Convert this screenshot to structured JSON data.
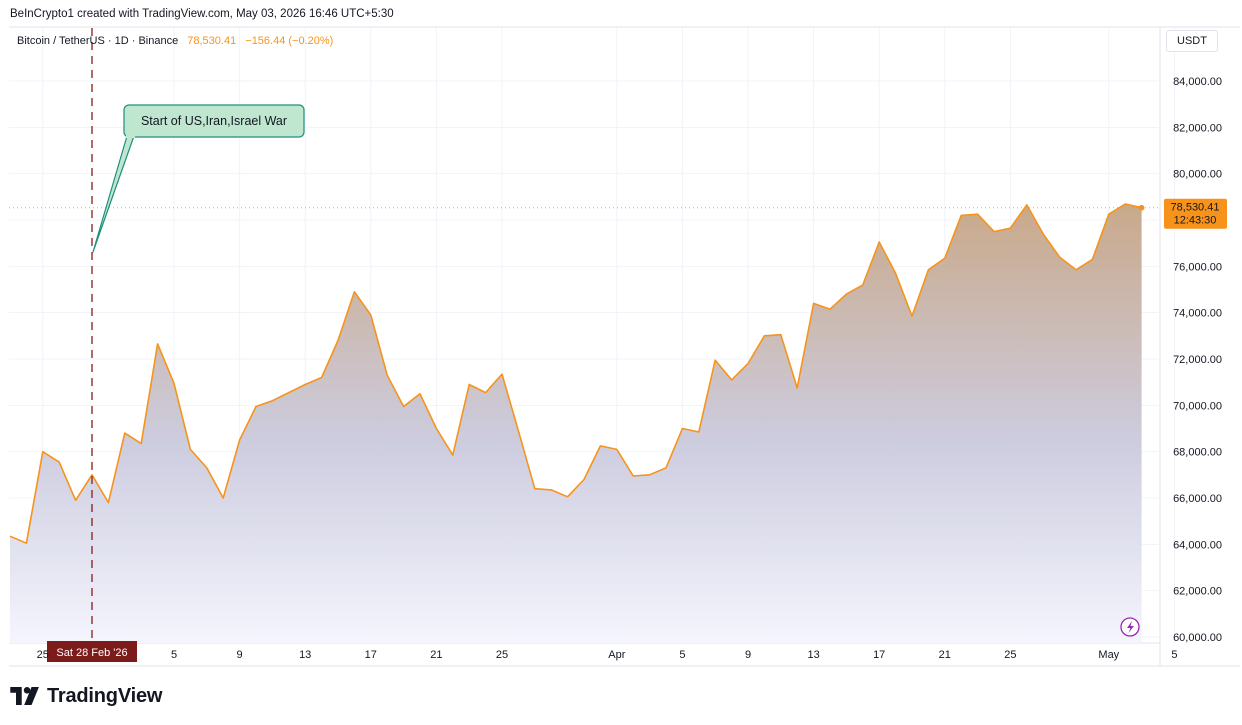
{
  "header": {
    "attribution": "BeInCrypto1 created with TradingView.com, May 03, 2026 16:46 UTC+5:30"
  },
  "legend": {
    "symbol": "Bitcoin / TetherUS · 1D · Binance",
    "price": "78,530.41",
    "change": "−156.44 (−0.20%)"
  },
  "currency": "USDT",
  "last_price_label": {
    "price": "78,530.41",
    "countdown": "12:43:30"
  },
  "annotation": {
    "text": "Start of US,Iran,Israel War"
  },
  "crosshair_date_label": "Sat 28 Feb '26",
  "logo": {
    "text": "TradingView"
  },
  "colors": {
    "line": "#f7931a",
    "area_top": "#c9a98a",
    "area_bottom": "#eef0fb",
    "annotation_fill": "#bfe6cf",
    "annotation_border": "#1e8f7c",
    "crosshair": "#8b1a1a",
    "date_label_bg": "#7d1b1b",
    "price_label_bg": "#f7931a",
    "flash_icon": "#9c27b0"
  },
  "icons": {
    "flash": "flash-icon",
    "logo": "tradingview-logo-icon"
  },
  "chart_data": {
    "type": "area",
    "x_tick_labels": [
      "25",
      "5",
      "9",
      "13",
      "17",
      "21",
      "25",
      "Apr",
      "5",
      "9",
      "13",
      "17",
      "21",
      "25",
      "May",
      "5"
    ],
    "y_tick_labels": [
      "60,000.00",
      "62,000.00",
      "64,000.00",
      "66,000.00",
      "68,000.00",
      "70,000.00",
      "72,000.00",
      "74,000.00",
      "76,000.00",
      "78,000.00",
      "80,000.00",
      "82,000.00",
      "84,000.00"
    ],
    "ylim": [
      59800,
      86000
    ],
    "x_start": "2026-02-23",
    "x": [
      "2026-02-23",
      "2026-02-24",
      "2026-02-25",
      "2026-02-26",
      "2026-02-27",
      "2026-02-28",
      "2026-03-01",
      "2026-03-02",
      "2026-03-03",
      "2026-03-04",
      "2026-03-05",
      "2026-03-06",
      "2026-03-07",
      "2026-03-08",
      "2026-03-09",
      "2026-03-10",
      "2026-03-11",
      "2026-03-12",
      "2026-03-13",
      "2026-03-14",
      "2026-03-15",
      "2026-03-16",
      "2026-03-17",
      "2026-03-18",
      "2026-03-19",
      "2026-03-20",
      "2026-03-21",
      "2026-03-22",
      "2026-03-23",
      "2026-03-24",
      "2026-03-25",
      "2026-03-26",
      "2026-03-27",
      "2026-03-28",
      "2026-03-29",
      "2026-03-30",
      "2026-03-31",
      "2026-04-01",
      "2026-04-02",
      "2026-04-03",
      "2026-04-04",
      "2026-04-05",
      "2026-04-06",
      "2026-04-07",
      "2026-04-08",
      "2026-04-09",
      "2026-04-10",
      "2026-04-11",
      "2026-04-12",
      "2026-04-13",
      "2026-04-14",
      "2026-04-15",
      "2026-04-16",
      "2026-04-17",
      "2026-04-18",
      "2026-04-19",
      "2026-04-20",
      "2026-04-21",
      "2026-04-22",
      "2026-04-23",
      "2026-04-24",
      "2026-04-25",
      "2026-04-26",
      "2026-04-27",
      "2026-04-28",
      "2026-04-29",
      "2026-04-30",
      "2026-05-01",
      "2026-05-02",
      "2026-05-03"
    ],
    "values": [
      64350,
      64050,
      68000,
      67550,
      65900,
      67000,
      65800,
      68800,
      68350,
      72650,
      70950,
      68100,
      67300,
      66000,
      68500,
      69950,
      70200,
      70550,
      70900,
      71200,
      72800,
      74900,
      73900,
      71300,
      69950,
      70500,
      69000,
      67850,
      70900,
      70550,
      71350,
      68900,
      66400,
      66350,
      66050,
      66800,
      68250,
      68100,
      66950,
      67000,
      67300,
      69000,
      68850,
      71950,
      71100,
      71800,
      73000,
      73050,
      70750,
      74400,
      74150,
      74800,
      75200,
      77050,
      75700,
      73850,
      75850,
      76350,
      78200,
      78250,
      77500,
      77650,
      78650,
      77400,
      76400,
      75850,
      76300,
      78250,
      78690,
      78530
    ]
  }
}
